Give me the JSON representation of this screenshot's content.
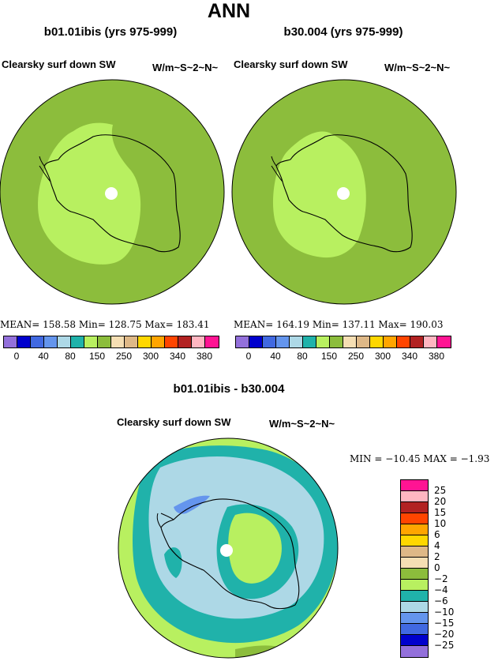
{
  "title": "ANN",
  "panels": [
    {
      "case": "b01.01ibis (yrs 975-999)",
      "variable": "Clearsky surf down SW",
      "units": "W/m~S~2~N~",
      "stats": "MEAN=  158.58    Min=  128.75    Max=  183.41"
    },
    {
      "case": "b30.004 (yrs 975-999)",
      "variable": "Clearsky surf down SW",
      "units": "W/m~S~2~N~",
      "stats": "MEAN=  164.19    Min=  137.11    Max=  190.03"
    }
  ],
  "colorbar": {
    "colors": [
      "#9370db",
      "#0000cd",
      "#4169e1",
      "#6495ed",
      "#add8e6",
      "#20b2aa",
      "#b8f060",
      "#8cbd3c",
      "#f5deb3",
      "#deb887",
      "#ffd700",
      "#ffa500",
      "#ff4500",
      "#b22222",
      "#ffb6c1",
      "#ff1493"
    ],
    "labels": [
      "0",
      "40",
      "80",
      "150",
      "250",
      "300",
      "340",
      "380"
    ]
  },
  "diff": {
    "case": "b01.01ibis - b30.004",
    "variable": "Clearsky surf down SW",
    "units": "W/m~S~2~N~",
    "stats": "MIN = −10.45  MAX =  −1.93",
    "colors": [
      "#ff1493",
      "#ffb6c1",
      "#b22222",
      "#ff4500",
      "#ffa500",
      "#ffd700",
      "#deb887",
      "#f5deb3",
      "#8cbd3c",
      "#b8f060",
      "#20b2aa",
      "#add8e6",
      "#6495ed",
      "#4169e1",
      "#0000cd",
      "#9370db"
    ],
    "labels": [
      "25",
      "20",
      "15",
      "10",
      "6",
      "4",
      "2",
      "0",
      "−2",
      "−4",
      "−6",
      "−10",
      "−15",
      "−20",
      "−25"
    ]
  },
  "map_colors": {
    "outer": "#8cbd3c",
    "inner": "#b8f060",
    "diff_land": "#add8e6",
    "diff_ring": "#20b2aa",
    "diff_outer": "#b8f060",
    "diff_core": "#b8f060",
    "diff_dark": "#8cbd3c",
    "diff_patch": "#6495ed"
  }
}
